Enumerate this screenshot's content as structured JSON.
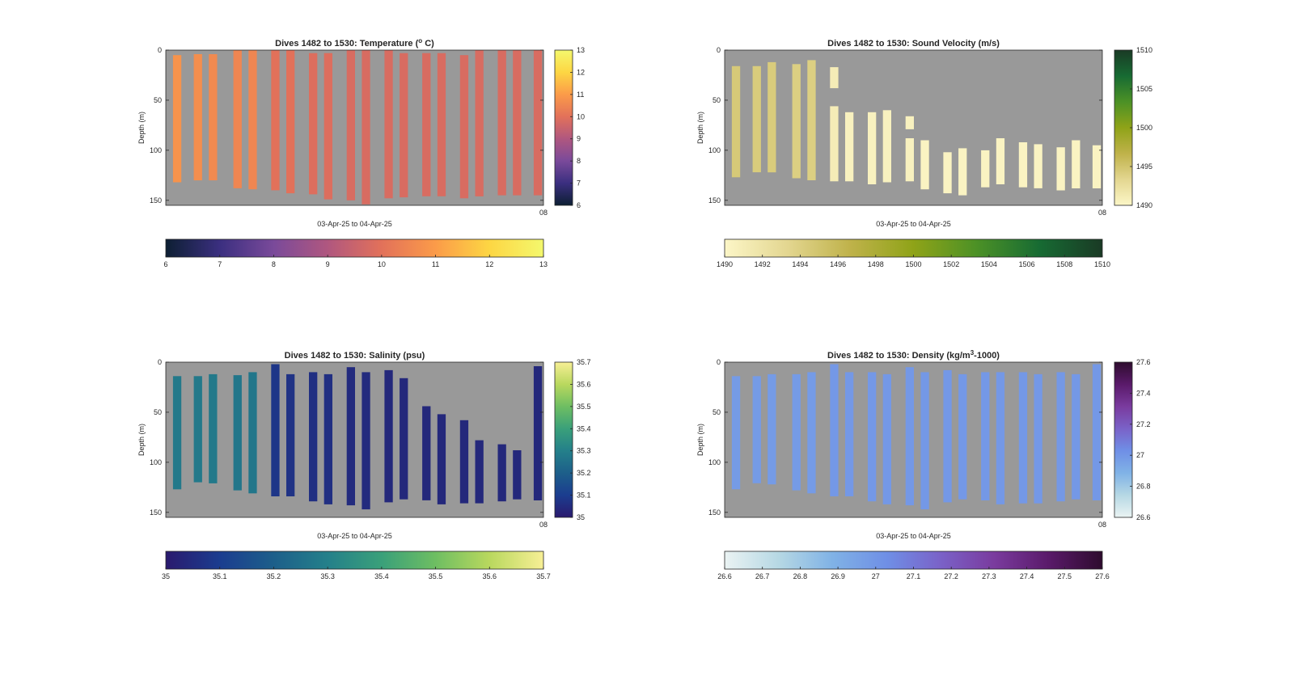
{
  "chart_data": [
    {
      "type": "heatmap",
      "title": "Dives 1482 to 1530: Temperature (",
      "title_sup": "o",
      "title_end": " C)",
      "xlabel": "03-Apr-25 to 04-Apr-25",
      "ylabel": "Depth (m)",
      "ylim": [
        0,
        155
      ],
      "yticks": [
        0,
        50,
        100,
        150
      ],
      "x_end_tick": "08",
      "colorbar": {
        "min": 6,
        "max": 13,
        "ticks": [
          "6",
          "7",
          "8",
          "9",
          "10",
          "11",
          "12",
          "13"
        ],
        "colors": [
          "#0d1f33",
          "#3b2f80",
          "#7a4a9a",
          "#b0577f",
          "#e2715a",
          "#fb9b49",
          "#fdd643",
          "#f4f86d"
        ]
      },
      "background": "#999999",
      "casts": [
        {
          "x": 0.03,
          "top": 5,
          "bottom": 132,
          "value": 10.8
        },
        {
          "x": 0.085,
          "top": 4,
          "bottom": 130,
          "value": 10.7
        },
        {
          "x": 0.125,
          "top": 4,
          "bottom": 130,
          "value": 10.6
        },
        {
          "x": 0.19,
          "top": 0,
          "bottom": 138,
          "value": 10.5
        },
        {
          "x": 0.23,
          "top": 0,
          "bottom": 139,
          "value": 10.5
        },
        {
          "x": 0.29,
          "top": 0,
          "bottom": 140,
          "value": 10.0
        },
        {
          "x": 0.33,
          "top": 0,
          "bottom": 143,
          "value": 10.0
        },
        {
          "x": 0.39,
          "top": 3,
          "bottom": 144,
          "value": 9.9
        },
        {
          "x": 0.43,
          "top": 3,
          "bottom": 149,
          "value": 9.9
        },
        {
          "x": 0.49,
          "top": 0,
          "bottom": 150,
          "value": 9.8
        },
        {
          "x": 0.53,
          "top": 0,
          "bottom": 154,
          "value": 9.8
        },
        {
          "x": 0.59,
          "top": 0,
          "bottom": 148,
          "value": 9.8
        },
        {
          "x": 0.63,
          "top": 3,
          "bottom": 147,
          "value": 9.8
        },
        {
          "x": 0.69,
          "top": 3,
          "bottom": 146,
          "value": 9.8
        },
        {
          "x": 0.73,
          "top": 3,
          "bottom": 146,
          "value": 9.8
        },
        {
          "x": 0.79,
          "top": 5,
          "bottom": 148,
          "value": 9.8
        },
        {
          "x": 0.83,
          "top": 0,
          "bottom": 146,
          "value": 9.8
        },
        {
          "x": 0.89,
          "top": 0,
          "bottom": 145,
          "value": 9.8
        },
        {
          "x": 0.93,
          "top": 0,
          "bottom": 145,
          "value": 9.8
        },
        {
          "x": 0.985,
          "top": 0,
          "bottom": 145,
          "value": 9.8
        }
      ]
    },
    {
      "type": "heatmap",
      "title": "Dives 1482 to 1530: Sound Velocity (m/s)",
      "xlabel": "03-Apr-25 to 04-Apr-25",
      "ylabel": "Depth (m)",
      "ylim": [
        0,
        155
      ],
      "yticks": [
        0,
        50,
        100,
        150
      ],
      "x_end_tick": "08",
      "colorbar": {
        "min": 1490,
        "max": 1510,
        "ticks": [
          "1490",
          "1495",
          "1500",
          "1505",
          "1510"
        ],
        "colors": [
          "#fcf6c7",
          "#e3d690",
          "#bfb24a",
          "#8fa318",
          "#4c9126",
          "#176b33",
          "#1a3a25"
        ]
      },
      "horizontal_ticks": [
        "1490",
        "1492",
        "1494",
        "1496",
        "1498",
        "1500",
        "1502",
        "1504",
        "1506",
        "1508",
        "1510"
      ],
      "background": "#999999",
      "casts": [
        {
          "x": 0.03,
          "top": 16,
          "bottom": 127,
          "value": 1494.5
        },
        {
          "x": 0.085,
          "top": 16,
          "bottom": 122,
          "value": 1494.3
        },
        {
          "x": 0.125,
          "top": 12,
          "bottom": 122,
          "value": 1494.3
        },
        {
          "x": 0.19,
          "top": 14,
          "bottom": 128,
          "value": 1494.0
        },
        {
          "x": 0.23,
          "top": 10,
          "bottom": 130,
          "value": 1494.0
        },
        {
          "x": 0.29,
          "top": 17,
          "bottom": 38,
          "value": 1491.0
        },
        {
          "x": 0.29,
          "top": 56,
          "bottom": 131,
          "value": 1491.0
        },
        {
          "x": 0.33,
          "top": 62,
          "bottom": 131,
          "value": 1490.5
        },
        {
          "x": 0.39,
          "top": 62,
          "bottom": 134,
          "value": 1490.5
        },
        {
          "x": 0.43,
          "top": 60,
          "bottom": 132,
          "value": 1490.5
        },
        {
          "x": 0.49,
          "top": 66,
          "bottom": 79,
          "value": 1490.5
        },
        {
          "x": 0.49,
          "top": 88,
          "bottom": 131,
          "value": 1490.5
        },
        {
          "x": 0.53,
          "top": 90,
          "bottom": 139,
          "value": 1490.3
        },
        {
          "x": 0.59,
          "top": 102,
          "bottom": 143,
          "value": 1490.3
        },
        {
          "x": 0.63,
          "top": 98,
          "bottom": 145,
          "value": 1490.3
        },
        {
          "x": 0.69,
          "top": 100,
          "bottom": 137,
          "value": 1490.3
        },
        {
          "x": 0.73,
          "top": 88,
          "bottom": 134,
          "value": 1490.3
        },
        {
          "x": 0.79,
          "top": 92,
          "bottom": 137,
          "value": 1490.3
        },
        {
          "x": 0.83,
          "top": 94,
          "bottom": 138,
          "value": 1490.3
        },
        {
          "x": 0.89,
          "top": 97,
          "bottom": 140,
          "value": 1490.3
        },
        {
          "x": 0.93,
          "top": 90,
          "bottom": 138,
          "value": 1490.3
        },
        {
          "x": 0.985,
          "top": 95,
          "bottom": 138,
          "value": 1490.3
        }
      ]
    },
    {
      "type": "heatmap",
      "title": "Dives 1482 to 1530: Salinity (psu)",
      "xlabel": "03-Apr-25 to 04-Apr-25",
      "ylabel": "Depth (m)",
      "ylim": [
        0,
        155
      ],
      "yticks": [
        0,
        50,
        100,
        150
      ],
      "x_end_tick": "08",
      "colorbar": {
        "min": 35,
        "max": 35.7,
        "ticks": [
          "35",
          "35.1",
          "35.2",
          "35.3",
          "35.4",
          "35.5",
          "35.6",
          "35.7"
        ],
        "colors": [
          "#2a1a6e",
          "#1b3d8f",
          "#1d5f8a",
          "#24808a",
          "#3aa07a",
          "#6ebe62",
          "#b9d85e",
          "#f7ef95"
        ]
      },
      "background": "#999999",
      "casts": [
        {
          "x": 0.03,
          "top": 14,
          "bottom": 127,
          "value": 35.28
        },
        {
          "x": 0.085,
          "top": 14,
          "bottom": 120,
          "value": 35.28
        },
        {
          "x": 0.125,
          "top": 12,
          "bottom": 121,
          "value": 35.28
        },
        {
          "x": 0.19,
          "top": 13,
          "bottom": 128,
          "value": 35.27
        },
        {
          "x": 0.23,
          "top": 10,
          "bottom": 131,
          "value": 35.27
        },
        {
          "x": 0.29,
          "top": 2,
          "bottom": 134,
          "value": 35.08
        },
        {
          "x": 0.33,
          "top": 12,
          "bottom": 134,
          "value": 35.07
        },
        {
          "x": 0.39,
          "top": 10,
          "bottom": 139,
          "value": 35.06
        },
        {
          "x": 0.43,
          "top": 12,
          "bottom": 142,
          "value": 35.06
        },
        {
          "x": 0.49,
          "top": 5,
          "bottom": 143,
          "value": 35.05
        },
        {
          "x": 0.53,
          "top": 10,
          "bottom": 147,
          "value": 35.05
        },
        {
          "x": 0.59,
          "top": 8,
          "bottom": 140,
          "value": 35.04
        },
        {
          "x": 0.63,
          "top": 16,
          "bottom": 137,
          "value": 35.04
        },
        {
          "x": 0.69,
          "top": 44,
          "bottom": 138,
          "value": 35.04
        },
        {
          "x": 0.73,
          "top": 52,
          "bottom": 142,
          "value": 35.04
        },
        {
          "x": 0.79,
          "top": 58,
          "bottom": 141,
          "value": 35.04
        },
        {
          "x": 0.83,
          "top": 78,
          "bottom": 141,
          "value": 35.04
        },
        {
          "x": 0.89,
          "top": 82,
          "bottom": 139,
          "value": 35.04
        },
        {
          "x": 0.93,
          "top": 88,
          "bottom": 137,
          "value": 35.04
        },
        {
          "x": 0.985,
          "top": 4,
          "bottom": 138,
          "value": 35.04
        }
      ]
    },
    {
      "type": "heatmap",
      "title": "Dives 1482 to 1530: Density (kg/m",
      "title_sup": "3",
      "title_end": "-1000)",
      "xlabel": "03-Apr-25 to 04-Apr-25",
      "ylabel": "Depth (m)",
      "ylim": [
        0,
        155
      ],
      "yticks": [
        0,
        50,
        100,
        150
      ],
      "x_end_tick": "08",
      "colorbar": {
        "min": 26.6,
        "max": 27.6,
        "ticks": [
          "26.6",
          "26.8",
          "27",
          "27.2",
          "27.4",
          "27.6"
        ],
        "colors": [
          "#eaf3f3",
          "#b6d8e4",
          "#80b2e6",
          "#6f8fe6",
          "#7a62c8",
          "#7a3b9e",
          "#5a1a6a",
          "#2e0c2e"
        ]
      },
      "horizontal_ticks": [
        "26.6",
        "26.7",
        "26.8",
        "26.9",
        "27",
        "27.1",
        "27.2",
        "27.3",
        "27.4",
        "27.5",
        "27.6"
      ],
      "background": "#999999",
      "casts": [
        {
          "x": 0.03,
          "top": 14,
          "bottom": 127,
          "value": 26.98
        },
        {
          "x": 0.085,
          "top": 14,
          "bottom": 121,
          "value": 26.98
        },
        {
          "x": 0.125,
          "top": 12,
          "bottom": 122,
          "value": 26.98
        },
        {
          "x": 0.19,
          "top": 12,
          "bottom": 128,
          "value": 26.98
        },
        {
          "x": 0.23,
          "top": 10,
          "bottom": 131,
          "value": 26.98
        },
        {
          "x": 0.29,
          "top": 2,
          "bottom": 134,
          "value": 26.99
        },
        {
          "x": 0.33,
          "top": 10,
          "bottom": 134,
          "value": 26.99
        },
        {
          "x": 0.39,
          "top": 10,
          "bottom": 139,
          "value": 26.99
        },
        {
          "x": 0.43,
          "top": 12,
          "bottom": 142,
          "value": 26.99
        },
        {
          "x": 0.49,
          "top": 5,
          "bottom": 143,
          "value": 26.99
        },
        {
          "x": 0.53,
          "top": 10,
          "bottom": 147,
          "value": 26.99
        },
        {
          "x": 0.59,
          "top": 8,
          "bottom": 140,
          "value": 26.99
        },
        {
          "x": 0.63,
          "top": 12,
          "bottom": 137,
          "value": 26.99
        },
        {
          "x": 0.69,
          "top": 10,
          "bottom": 138,
          "value": 26.99
        },
        {
          "x": 0.73,
          "top": 10,
          "bottom": 142,
          "value": 26.99
        },
        {
          "x": 0.79,
          "top": 10,
          "bottom": 141,
          "value": 26.99
        },
        {
          "x": 0.83,
          "top": 12,
          "bottom": 141,
          "value": 26.99
        },
        {
          "x": 0.89,
          "top": 10,
          "bottom": 139,
          "value": 26.99
        },
        {
          "x": 0.93,
          "top": 12,
          "bottom": 137,
          "value": 26.99
        },
        {
          "x": 0.985,
          "top": 2,
          "bottom": 138,
          "value": 26.99
        }
      ]
    }
  ]
}
